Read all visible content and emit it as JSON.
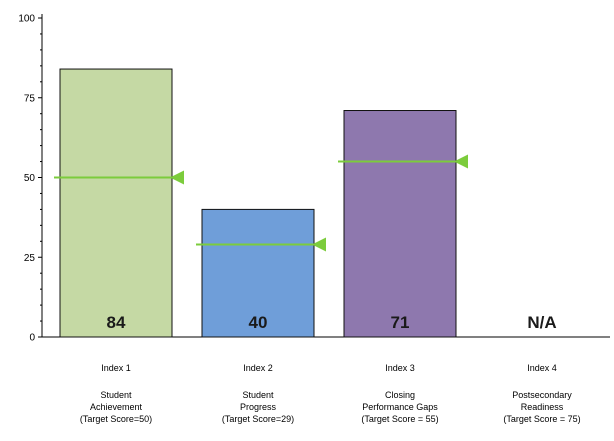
{
  "chart_data": {
    "type": "bar",
    "title": "",
    "xlabel": "",
    "ylabel": "",
    "ylim": [
      0,
      100
    ],
    "yticks": [
      0,
      25,
      50,
      75,
      100
    ],
    "categories": [
      {
        "index": "Index 1",
        "name": [
          "Student",
          "Achievement",
          "(Target Score=50)"
        ]
      },
      {
        "index": "Index 2",
        "name": [
          "Student",
          "Progress",
          "(Target Score=29)"
        ]
      },
      {
        "index": "Index 3",
        "name": [
          "Closing",
          "Performance Gaps",
          "(Target Score = 55)"
        ]
      },
      {
        "index": "Index 4",
        "name": [
          "Postsecondary",
          "Readiness",
          "(Target Score = 75)"
        ]
      }
    ],
    "values": [
      84,
      40,
      71,
      null
    ],
    "value_labels": [
      "84",
      "40",
      "71",
      "N/A"
    ],
    "targets": [
      50,
      29,
      55,
      null
    ],
    "bar_colors": [
      "#c5d9a4",
      "#6f9ed9",
      "#8e78ae",
      null
    ],
    "target_color": "#7ccc3c",
    "grid": false,
    "legend": "none"
  }
}
